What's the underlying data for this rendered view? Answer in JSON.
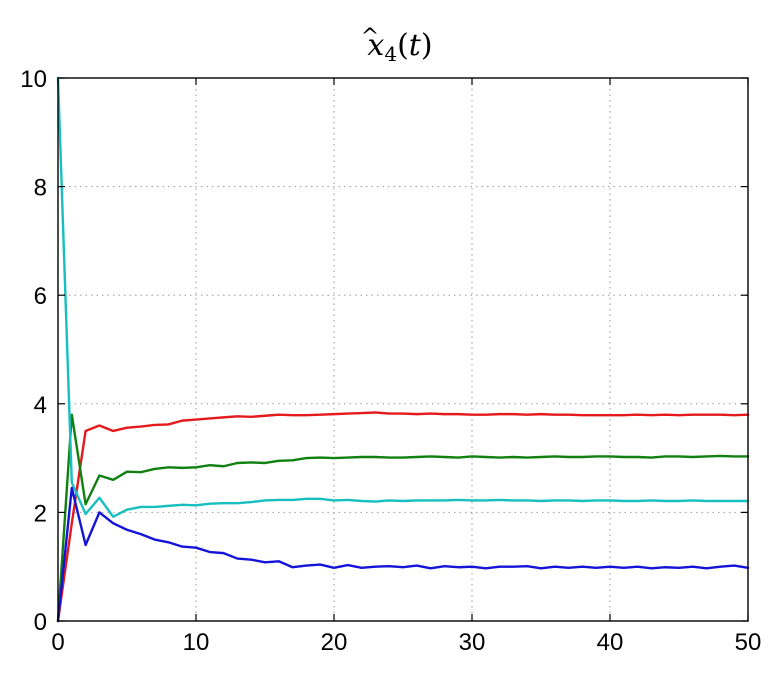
{
  "chart_data": {
    "type": "line",
    "title": {
      "hat": "^",
      "variable": "x",
      "subscript": "4",
      "open": "(",
      "argument": "t",
      "close": ")"
    },
    "xlabel": "",
    "ylabel": "",
    "xlim": [
      0,
      50
    ],
    "ylim": [
      0,
      10
    ],
    "xticks": [
      "0",
      "10",
      "20",
      "30",
      "40",
      "50"
    ],
    "yticks": [
      "0",
      "2",
      "4",
      "6",
      "8",
      "10"
    ],
    "grid": true,
    "x": [
      0,
      1,
      2,
      3,
      4,
      5,
      6,
      7,
      8,
      9,
      10,
      11,
      12,
      13,
      14,
      15,
      16,
      17,
      18,
      19,
      20,
      21,
      22,
      23,
      24,
      25,
      26,
      27,
      28,
      29,
      30,
      31,
      32,
      33,
      34,
      35,
      36,
      37,
      38,
      39,
      40,
      41,
      42,
      43,
      44,
      45,
      46,
      47,
      48,
      49,
      50
    ],
    "series": [
      {
        "color": "#e41a1c",
        "values": [
          0,
          1.8,
          3.5,
          3.6,
          3.5,
          3.56,
          3.58,
          3.61,
          3.62,
          3.69,
          3.71,
          3.73,
          3.75,
          3.77,
          3.76,
          3.78,
          3.8,
          3.79,
          3.79,
          3.8,
          3.81,
          3.82,
          3.83,
          3.84,
          3.82,
          3.82,
          3.81,
          3.82,
          3.81,
          3.81,
          3.8,
          3.8,
          3.81,
          3.81,
          3.8,
          3.81,
          3.8,
          3.8,
          3.79,
          3.79,
          3.79,
          3.79,
          3.8,
          3.79,
          3.8,
          3.79,
          3.8,
          3.8,
          3.8,
          3.79,
          3.8
        ]
      },
      {
        "color": "#118011",
        "values": [
          0,
          3.8,
          2.15,
          2.68,
          2.6,
          2.75,
          2.74,
          2.8,
          2.83,
          2.82,
          2.83,
          2.87,
          2.85,
          2.91,
          2.92,
          2.91,
          2.95,
          2.96,
          3.0,
          3.01,
          3.0,
          3.01,
          3.02,
          3.02,
          3.01,
          3.01,
          3.02,
          3.03,
          3.02,
          3.01,
          3.03,
          3.02,
          3.01,
          3.02,
          3.01,
          3.02,
          3.03,
          3.02,
          3.02,
          3.03,
          3.03,
          3.02,
          3.02,
          3.01,
          3.03,
          3.03,
          3.02,
          3.03,
          3.04,
          3.03,
          3.03
        ]
      },
      {
        "color": "#17bfc0",
        "values": [
          10,
          2.55,
          1.97,
          2.27,
          1.92,
          2.05,
          2.1,
          2.1,
          2.12,
          2.14,
          2.13,
          2.16,
          2.17,
          2.17,
          2.19,
          2.22,
          2.23,
          2.23,
          2.25,
          2.25,
          2.22,
          2.23,
          2.21,
          2.2,
          2.22,
          2.21,
          2.22,
          2.22,
          2.22,
          2.23,
          2.22,
          2.22,
          2.23,
          2.22,
          2.22,
          2.21,
          2.22,
          2.22,
          2.21,
          2.22,
          2.22,
          2.21,
          2.21,
          2.22,
          2.21,
          2.21,
          2.22,
          2.21,
          2.21,
          2.21,
          2.21
        ]
      },
      {
        "color": "#1414d8",
        "values": [
          0,
          2.45,
          1.4,
          2.0,
          1.8,
          1.68,
          1.6,
          1.5,
          1.45,
          1.37,
          1.35,
          1.27,
          1.25,
          1.15,
          1.13,
          1.08,
          1.1,
          0.99,
          1.02,
          1.04,
          0.98,
          1.03,
          0.98,
          1.0,
          1.01,
          0.99,
          1.02,
          0.97,
          1.01,
          0.99,
          1.0,
          0.97,
          1.0,
          1.0,
          1.01,
          0.97,
          1.0,
          0.98,
          1.0,
          0.98,
          1.0,
          0.98,
          1.0,
          0.97,
          0.99,
          0.98,
          1.0,
          0.97,
          1.0,
          1.02,
          0.98
        ]
      }
    ]
  }
}
